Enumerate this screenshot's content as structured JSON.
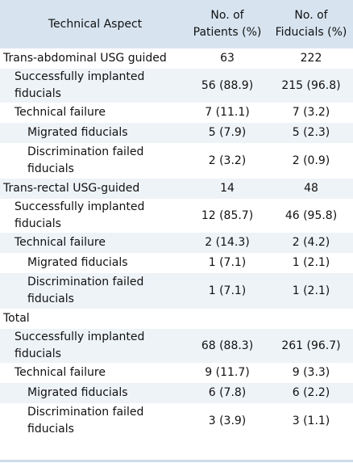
{
  "table": {
    "headers": {
      "aspect": "Technical Aspect",
      "patients": "No. of\nPatients (%)",
      "fiducials": "No. of\nFiducials (%)"
    },
    "rows": [
      {
        "label": "Trans-abdominal USG guided",
        "patients": "63",
        "fiducials": "222"
      },
      {
        "label": "Successfully implanted fiducials",
        "patients": "56 (88.9)",
        "fiducials": "215 (96.8)"
      },
      {
        "label": "Technical failure",
        "patients": "7 (11.1)",
        "fiducials": "7 (3.2)"
      },
      {
        "label": "Migrated fiducials",
        "patients": "5 (7.9)",
        "fiducials": "5 (2.3)"
      },
      {
        "label": "Discrimination failed fiducials",
        "patients": "2 (3.2)",
        "fiducials": "2 (0.9)"
      },
      {
        "label": "Trans-rectal USG-guided",
        "patients": "14",
        "fiducials": "48"
      },
      {
        "label": "Successfully implanted fiducials",
        "patients": "12 (85.7)",
        "fiducials": "46 (95.8)"
      },
      {
        "label": "Technical failure",
        "patients": "2 (14.3)",
        "fiducials": "2 (4.2)"
      },
      {
        "label": "Migrated fiducials",
        "patients": "1 (7.1)",
        "fiducials": "1 (2.1)"
      },
      {
        "label": "Discrimination failed fiducials",
        "patients": "1 (7.1)",
        "fiducials": "1 (2.1)"
      },
      {
        "label": "Total",
        "patients": "",
        "fiducials": ""
      },
      {
        "label": "Successfully implanted fiducials",
        "patients": "68 (88.3)",
        "fiducials": "261 (96.7)"
      },
      {
        "label": "Technical failure",
        "patients": "9 (11.7)",
        "fiducials": "9 (3.3)"
      },
      {
        "label": "Migrated fiducials",
        "patients": "6 (7.8)",
        "fiducials": "6 (2.2)"
      },
      {
        "label": "Discrimination failed fiducials",
        "patients": "3 (3.9)",
        "fiducials": "3 (1.1)"
      }
    ]
  }
}
